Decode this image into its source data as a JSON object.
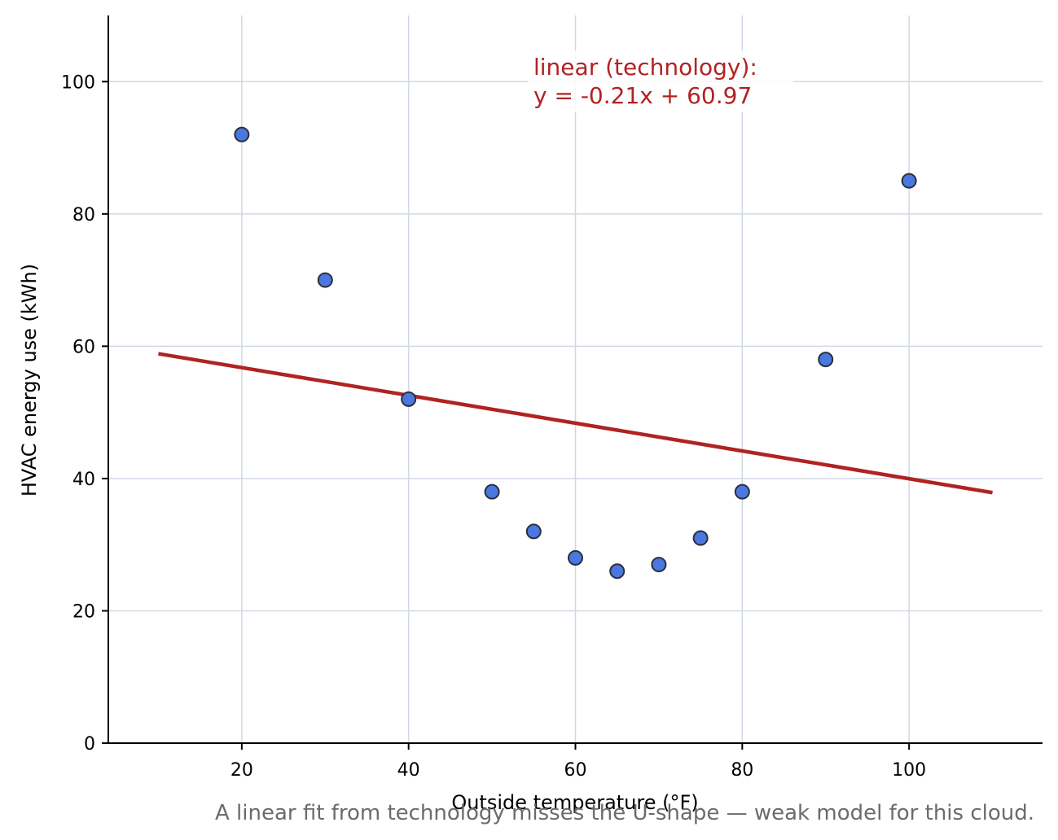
{
  "chart_data": {
    "type": "scatter",
    "xlabel": "Outside temperature (°F)",
    "ylabel": "HVAC energy use (kWh)",
    "xlim": [
      4,
      116
    ],
    "ylim": [
      0,
      110
    ],
    "x_ticks": [
      20,
      40,
      60,
      80,
      100
    ],
    "y_ticks": [
      0,
      20,
      40,
      60,
      80,
      100
    ],
    "grid": true,
    "points": {
      "x": [
        20,
        30,
        40,
        50,
        55,
        60,
        65,
        70,
        75,
        80,
        90,
        100
      ],
      "y": [
        92,
        70,
        52,
        38,
        32,
        28,
        26,
        27,
        31,
        38,
        58,
        85
      ]
    },
    "fit_line": {
      "slope": -0.21,
      "intercept": 60.97,
      "x_range": [
        10,
        110
      ]
    },
    "annotation": {
      "line1": "linear (technology):",
      "line2": "y = -0.21x + 60.97"
    },
    "caption": "A linear fit from technology misses the U-shape — weak model for this cloud.",
    "colors": {
      "points_fill": "#4a78e0",
      "points_edge": "#2a2f3a",
      "fit_line": "#b22222",
      "grid": "#d0d8e4",
      "caption": "#6b6b6b"
    }
  }
}
